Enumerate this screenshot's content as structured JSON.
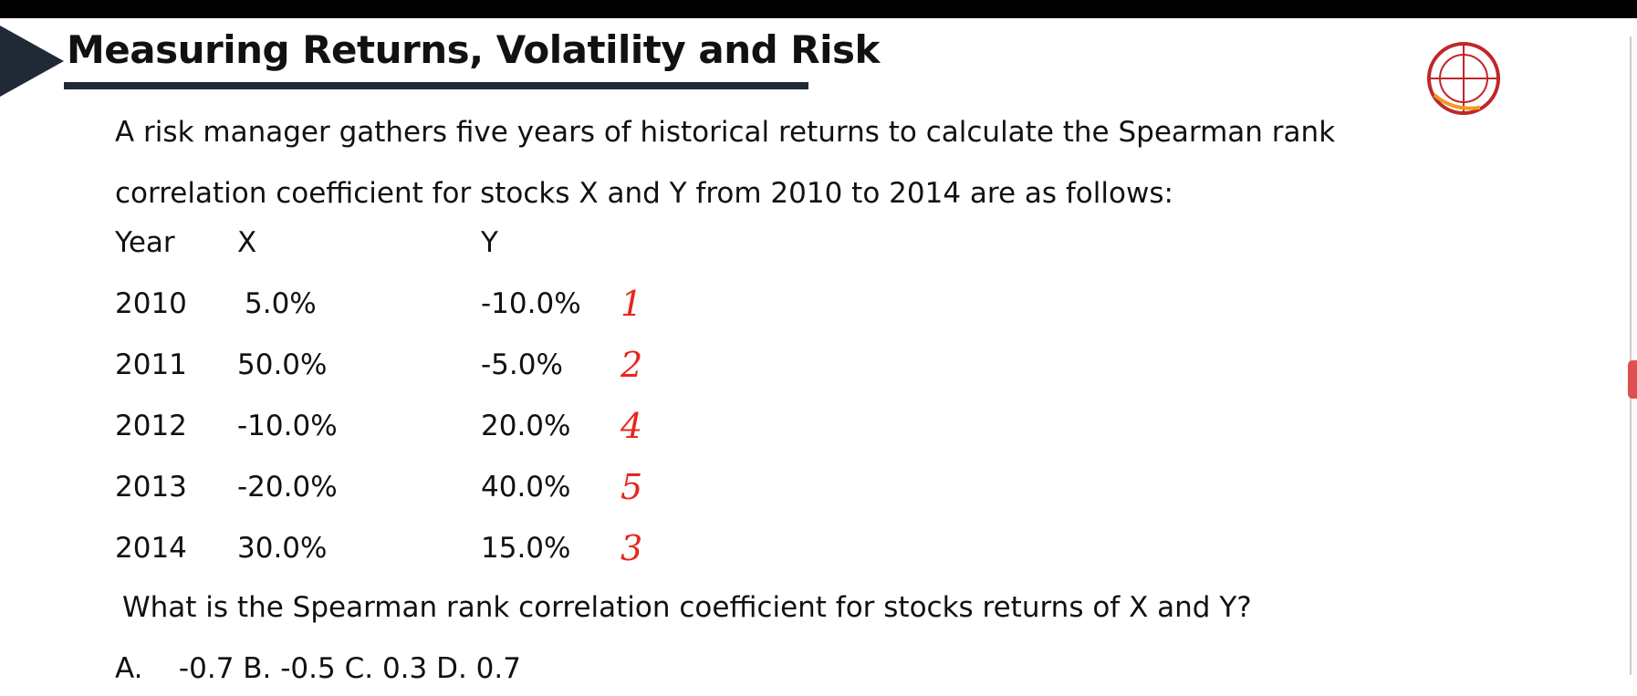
{
  "header": {
    "title": "Measuring Returns, Volatility and Risk"
  },
  "question": {
    "intro": "A risk manager gathers five years of historical returns to calculate the Spearman rank correlation coefficient for stocks X and Y from 2010 to 2014 are as follows:",
    "prompt": "What is the Spearman rank correlation coefficient for stocks returns of X and Y?",
    "options": "A.    -0.7 B. -0.5 C. 0.3 D. 0.7"
  },
  "table": {
    "headers": [
      "Year",
      "X",
      "Y"
    ],
    "rows": [
      [
        "2010",
        "5.0%",
        "-10.0%"
      ],
      [
        "2011",
        "50.0%",
        "-5.0%"
      ],
      [
        "2012",
        "-10.0%",
        "20.0%"
      ],
      [
        "2013",
        "-20.0%",
        "40.0%"
      ],
      [
        "2014",
        "30.0%",
        "15.0%"
      ]
    ]
  },
  "annotations": [
    "1",
    "2",
    "4",
    "5",
    "3"
  ]
}
